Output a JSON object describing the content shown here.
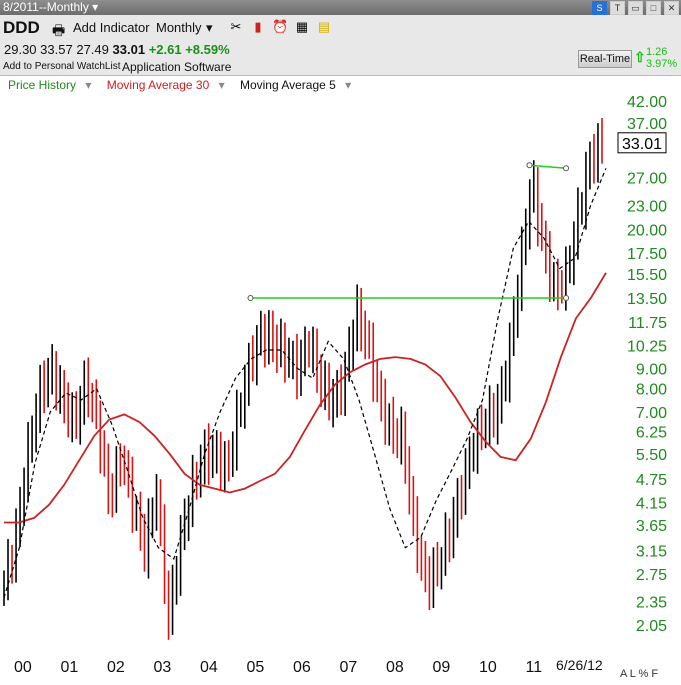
{
  "window": {
    "title": "8/2011--Monthly ▾"
  },
  "toolbar": {
    "symbol": "DDD",
    "add_indicator": "Add Indicator",
    "period": "Monthly",
    "period_caret": "▾",
    "icons": [
      "tools-icon",
      "bar-chart-icon",
      "alarm-clock-icon",
      "grid-icon",
      "note-icon"
    ]
  },
  "quote": {
    "open": "29.30",
    "high": "33.57",
    "low": "27.49",
    "close": "33.01",
    "change": "+2.61",
    "change_pct": "+8.59%",
    "watchlist_link": "Add to Personal WatchList",
    "industry": "Application Software",
    "realtime_label": "Real-Time",
    "rt_change": "1.26",
    "rt_change_pct": "3.97%"
  },
  "legend": {
    "price": "Price History",
    "ma30": "Moving Average 30",
    "ma5": "Moving Average 5",
    "caret": "▾"
  },
  "colors": {
    "up": "#000000",
    "down": "#dd1111",
    "ma30": "#cc2222",
    "ma5": "#000000",
    "trend": "#22cc22",
    "axis_text": "#1f8a1f"
  },
  "footer": {
    "date_label": "6/26/12",
    "buttons": "A L % F"
  },
  "chart_data": {
    "type": "bar",
    "title": "",
    "scale": "log",
    "ylim": [
      1.8,
      45
    ],
    "ytick_labels": [
      "42.00",
      "37.00",
      "33.00",
      "27.00",
      "23.00",
      "20.00",
      "17.50",
      "15.50",
      "13.50",
      "11.75",
      "10.25",
      "9.00",
      "8.00",
      "7.00",
      "6.25",
      "5.50",
      "4.75",
      "4.15",
      "3.65",
      "3.15",
      "2.75",
      "2.35",
      "2.05"
    ],
    "xtick_labels": [
      "00",
      "01",
      "02",
      "03",
      "04",
      "05",
      "06",
      "07",
      "08",
      "09",
      "10",
      "11"
    ],
    "last_price": "33.01",
    "series": [
      {
        "name": "Price History",
        "values": [
          2.6,
          3.4,
          5.5,
          7.8,
          9.0,
          7.5,
          6.5,
          8.4,
          6.5,
          4.2,
          5.5,
          4.1,
          3.2,
          4.5,
          2.1,
          3.3,
          4.5,
          5.5,
          5.5,
          5.0,
          7.0,
          9.5,
          11,
          10.5,
          9.8,
          9.0,
          10.5,
          8.3,
          7.4,
          8.5,
          12.5,
          10.5,
          7.5,
          6.3,
          6.0,
          3.5,
          2.6,
          2.9,
          3.5,
          4.5,
          5.8,
          6.7,
          7.0,
          9.5,
          16.0,
          27.0,
          18.0,
          14.0,
          15.5,
          22.0,
          30.4,
          33.01
        ]
      },
      {
        "name": "Moving Average 30",
        "values": [
          3.7,
          3.7,
          3.8,
          4.1,
          4.6,
          5.3,
          6.1,
          6.7,
          6.9,
          6.6,
          6.1,
          5.5,
          4.9,
          4.6,
          4.5,
          4.4,
          4.5,
          4.7,
          4.9,
          5.4,
          6.3,
          7.3,
          8.2,
          8.8,
          9.2,
          9.5,
          9.6,
          9.5,
          9.2,
          8.6,
          7.6,
          6.6,
          5.9,
          5.4,
          5.3,
          6.0,
          7.4,
          9.6,
          12.0,
          13.5,
          15.6
        ]
      },
      {
        "name": "Moving Average 5",
        "values": [
          2.4,
          3.2,
          5.2,
          7.0,
          7.8,
          7.5,
          8.0,
          6.5,
          5.0,
          3.8,
          3.2,
          3.0,
          4.0,
          5.5,
          7.0,
          8.5,
          9.5,
          10.0,
          10.0,
          9.0,
          8.5,
          10.5,
          9.5,
          7.5,
          5.5,
          4.0,
          3.2,
          3.4,
          4.2,
          5.0,
          6.0,
          7.5,
          12,
          18,
          21,
          19,
          16,
          17,
          23,
          28.5
        ]
      }
    ],
    "trendlines": [
      {
        "x": [
          5.0,
          11.7
        ],
        "y": [
          13.5,
          13.5
        ]
      },
      {
        "x": [
          11.0,
          11.7
        ],
        "y": [
          29.0,
          28.5
        ]
      }
    ]
  }
}
